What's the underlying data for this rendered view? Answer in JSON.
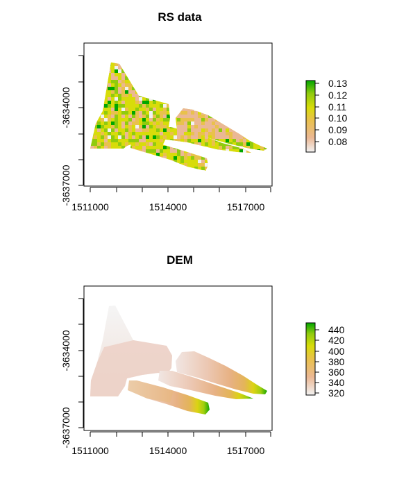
{
  "chart_data": [
    {
      "type": "heatmap",
      "title": "RS data",
      "x_ticks": [
        "1511000",
        "1514000",
        "1517000"
      ],
      "y_ticks": [
        "-3634000",
        "-3637000"
      ],
      "legend_ticks": [
        "0.13",
        "0.12",
        "0.11",
        "0.10",
        "0.09",
        "0.08"
      ],
      "legend_range": [
        0.075,
        0.135
      ],
      "legend_placement": "right",
      "colors": [
        "#f2f2f2",
        "#ebb894",
        "#e9c14c",
        "#d8dc0a",
        "#90cb0e",
        "#00a600"
      ]
    },
    {
      "type": "heatmap",
      "title": "DEM",
      "x_ticks": [
        "1511000",
        "1514000",
        "1517000"
      ],
      "y_ticks": [
        "-3634000",
        "-3637000"
      ],
      "legend_ticks": [
        "440",
        "420",
        "400",
        "380",
        "360",
        "340",
        "320"
      ],
      "legend_range": [
        315,
        450
      ],
      "legend_placement": "right",
      "colors": [
        "#f2f2f2",
        "#ebb894",
        "#e9c14c",
        "#d8dc0a",
        "#90cb0e",
        "#00a600"
      ]
    }
  ]
}
